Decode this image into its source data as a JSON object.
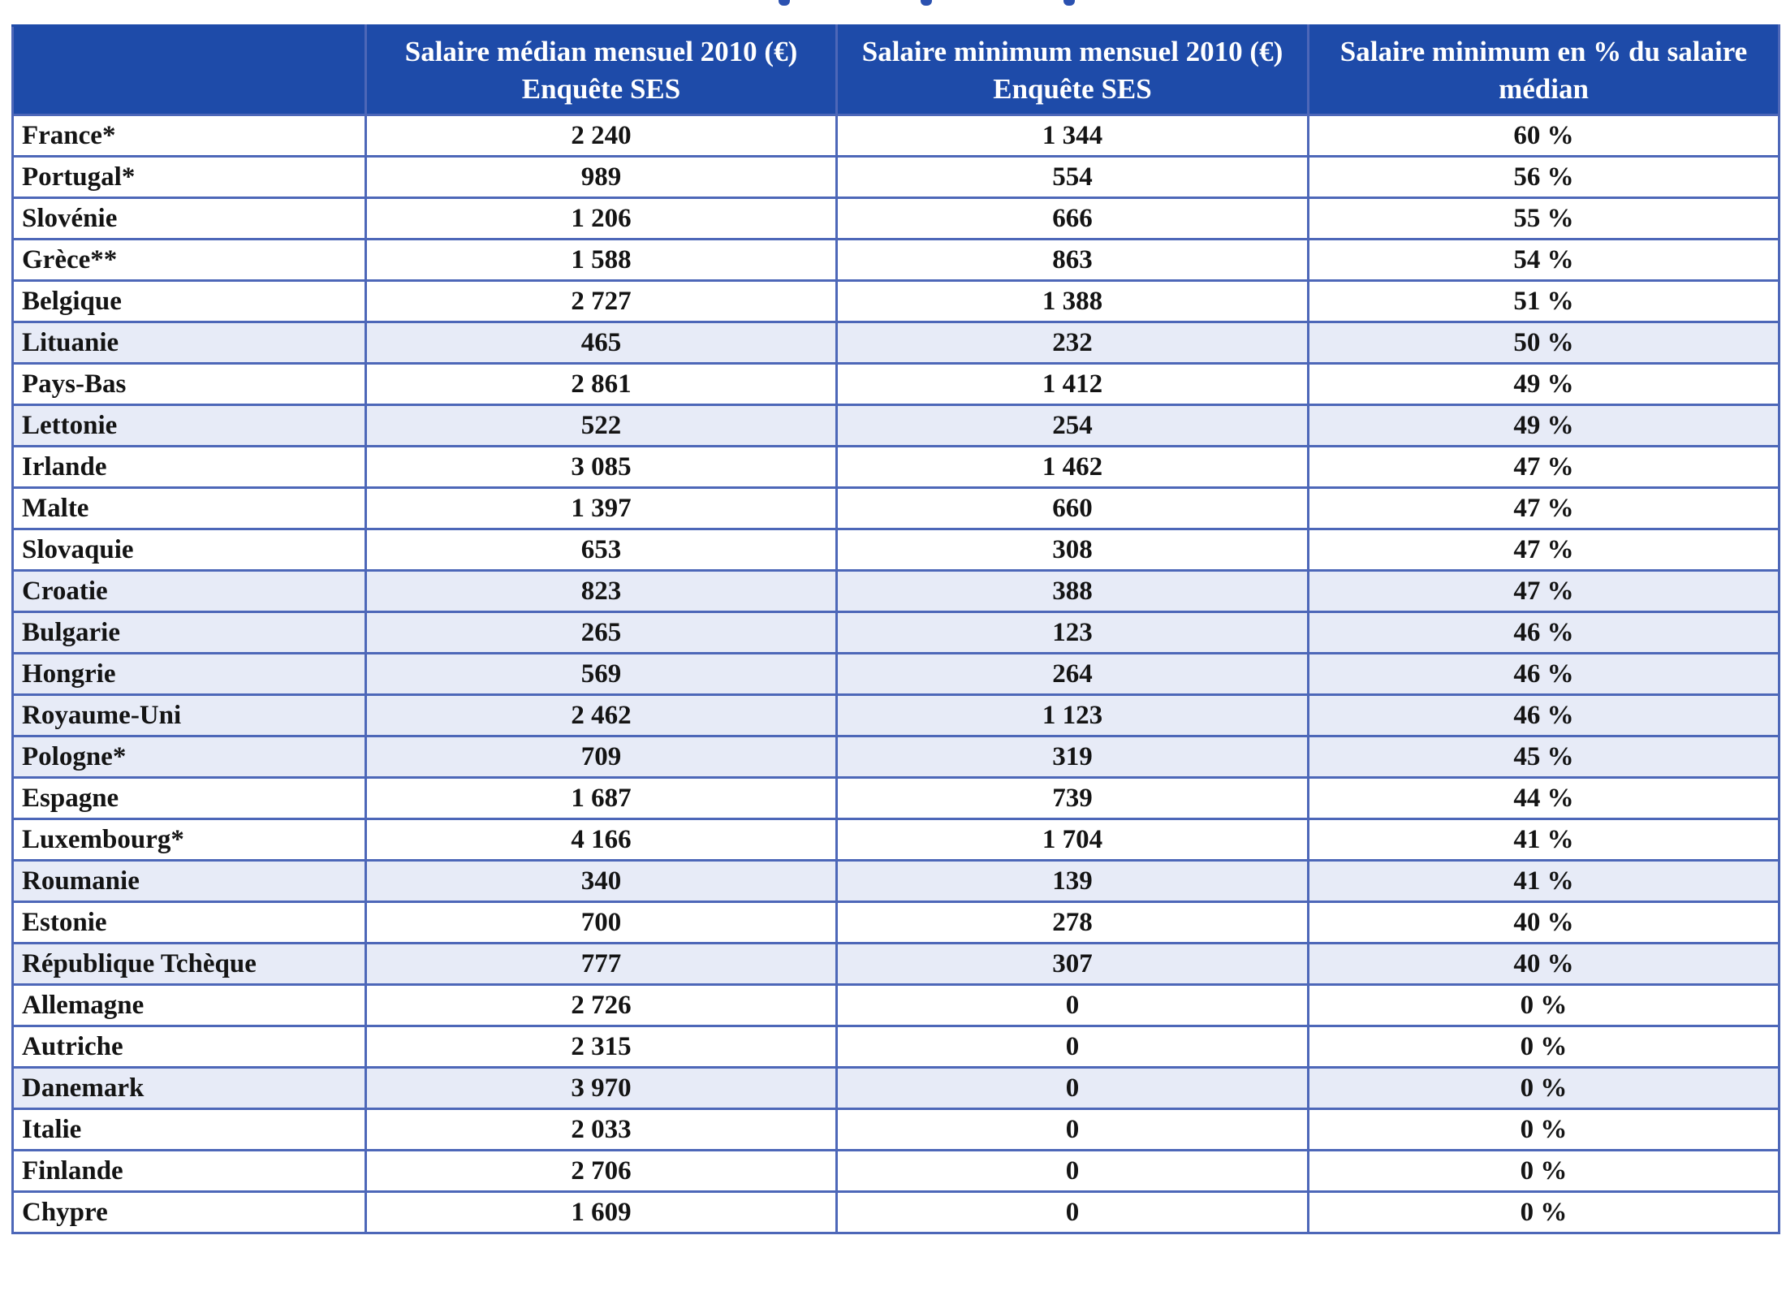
{
  "colors": {
    "header_bg": "#1e4ba9",
    "row_alt_bg": "#e7ebf7",
    "border": "#4d67b8",
    "header_sep": "#ffffff",
    "header_text": "#ffffff",
    "body_text": "#141414",
    "page_bg": "#ffffff"
  },
  "table": {
    "headers": [
      "",
      "Salaire médian mensuel 2010 (€) Enquête SES",
      "Salaire minimum mensuel 2010 (€) Enquête SES",
      "Salaire minimum en % du salaire médian"
    ],
    "rows": [
      {
        "country": "France*",
        "median": "2 240",
        "minimum": "1 344",
        "percent": "60 %",
        "shaded": false
      },
      {
        "country": "Portugal*",
        "median": "989",
        "minimum": "554",
        "percent": "56 %",
        "shaded": false
      },
      {
        "country": "Slovénie",
        "median": "1 206",
        "minimum": "666",
        "percent": "55 %",
        "shaded": false
      },
      {
        "country": "Grèce**",
        "median": "1 588",
        "minimum": "863",
        "percent": "54 %",
        "shaded": false
      },
      {
        "country": "Belgique",
        "median": "2 727",
        "minimum": "1 388",
        "percent": "51 %",
        "shaded": false
      },
      {
        "country": "Lituanie",
        "median": "465",
        "minimum": "232",
        "percent": "50 %",
        "shaded": true
      },
      {
        "country": "Pays-Bas",
        "median": "2 861",
        "minimum": "1 412",
        "percent": "49 %",
        "shaded": false
      },
      {
        "country": "Lettonie",
        "median": "522",
        "minimum": "254",
        "percent": "49 %",
        "shaded": true
      },
      {
        "country": "Irlande",
        "median": "3 085",
        "minimum": "1 462",
        "percent": "47 %",
        "shaded": false
      },
      {
        "country": "Malte",
        "median": "1 397",
        "minimum": "660",
        "percent": "47 %",
        "shaded": false
      },
      {
        "country": "Slovaquie",
        "median": "653",
        "minimum": "308",
        "percent": "47 %",
        "shaded": false
      },
      {
        "country": "Croatie",
        "median": "823",
        "minimum": "388",
        "percent": "47 %",
        "shaded": true
      },
      {
        "country": "Bulgarie",
        "median": "265",
        "minimum": "123",
        "percent": "46 %",
        "shaded": true
      },
      {
        "country": "Hongrie",
        "median": "569",
        "minimum": "264",
        "percent": "46 %",
        "shaded": true
      },
      {
        "country": "Royaume-Uni",
        "median": "2 462",
        "minimum": "1 123",
        "percent": "46 %",
        "shaded": true
      },
      {
        "country": "Pologne*",
        "median": "709",
        "minimum": "319",
        "percent": "45 %",
        "shaded": true
      },
      {
        "country": "Espagne",
        "median": "1 687",
        "minimum": "739",
        "percent": "44 %",
        "shaded": false
      },
      {
        "country": "Luxembourg*",
        "median": "4 166",
        "minimum": "1 704",
        "percent": "41 %",
        "shaded": false
      },
      {
        "country": "Roumanie",
        "median": "340",
        "minimum": "139",
        "percent": "41 %",
        "shaded": true
      },
      {
        "country": "Estonie",
        "median": "700",
        "minimum": "278",
        "percent": "40 %",
        "shaded": false
      },
      {
        "country": "République Tchèque",
        "median": "777",
        "minimum": "307",
        "percent": "40 %",
        "shaded": true
      },
      {
        "country": "Allemagne",
        "median": "2 726",
        "minimum": "0",
        "percent": "0 %",
        "shaded": false
      },
      {
        "country": "Autriche",
        "median": "2 315",
        "minimum": "0",
        "percent": "0 %",
        "shaded": false
      },
      {
        "country": "Danemark",
        "median": "3 970",
        "minimum": "0",
        "percent": "0 %",
        "shaded": true
      },
      {
        "country": "Italie",
        "median": "2 033",
        "minimum": "0",
        "percent": "0 %",
        "shaded": false
      },
      {
        "country": "Finlande",
        "median": "2 706",
        "minimum": "0",
        "percent": "0 %",
        "shaded": false
      },
      {
        "country": "Chypre",
        "median": "1 609",
        "minimum": "0",
        "percent": "0 %",
        "shaded": false
      }
    ]
  }
}
